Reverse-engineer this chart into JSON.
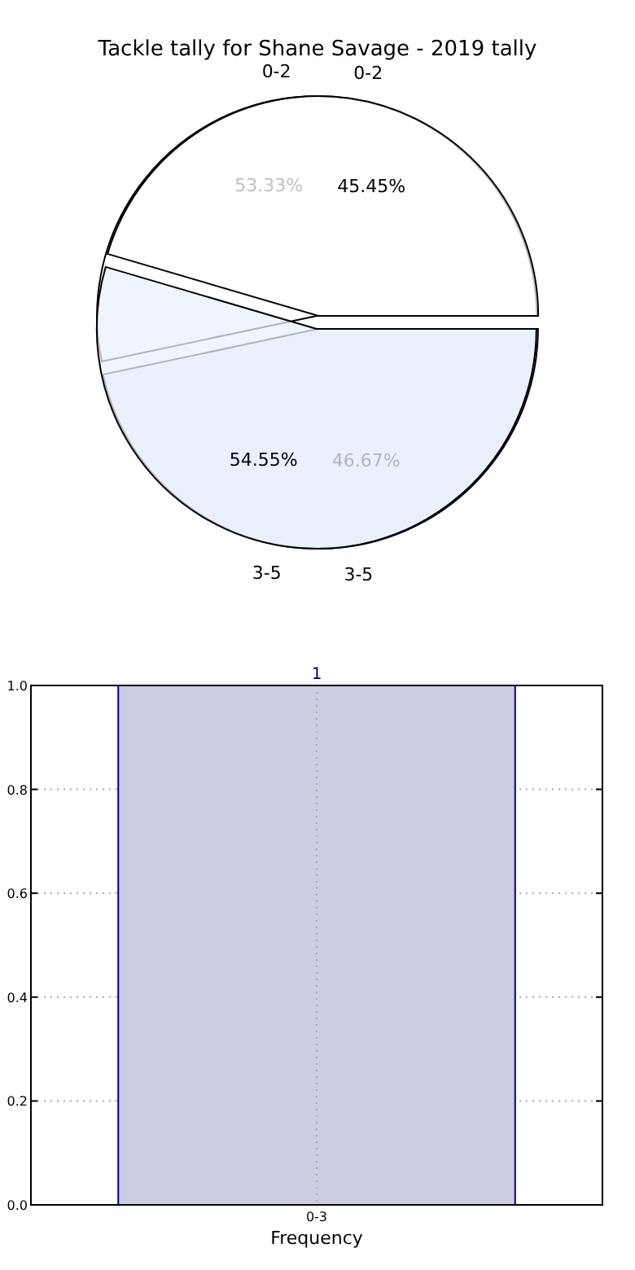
{
  "chart_data": [
    {
      "type": "pie",
      "title": "Tackle tally for Shane Savage - 2019 tally",
      "categories": [
        "0-2",
        "3-5"
      ],
      "values": [
        53.33,
        46.67
      ],
      "colors": [
        "#ffffff",
        "#eaf0fd"
      ],
      "value_labels": [
        "53.33%",
        "46.67%"
      ]
    },
    {
      "type": "pie",
      "categories": [
        "0-2",
        "3-5"
      ],
      "values": [
        45.45,
        54.55
      ],
      "colors": [
        "#ffffff",
        "#eaf0fd"
      ],
      "value_labels": [
        "45.45%",
        "54.55%"
      ]
    },
    {
      "type": "bar",
      "categories": [
        "0-3"
      ],
      "values": [
        1
      ],
      "color": "#ccccE3",
      "xlabel": "Frequency",
      "ylim": [
        0,
        1
      ],
      "yticks": [
        {
          "value": 0,
          "label": "0.0"
        },
        0.2,
        0.4,
        0.6,
        0.8,
        {
          "value": 1,
          "label": "1.0"
        }
      ],
      "grid": true,
      "data_labels": true
    }
  ]
}
